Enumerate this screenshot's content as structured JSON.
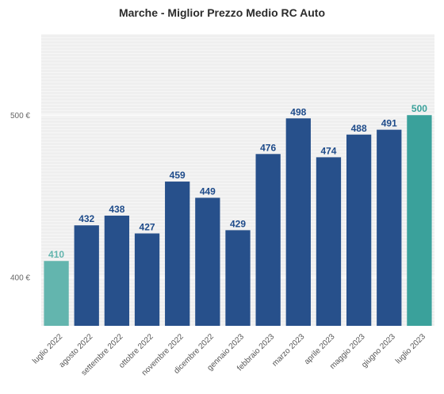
{
  "chart_data": {
    "type": "bar",
    "title": "Marche - Miglior Prezzo Medio RC Auto",
    "categories": [
      "luglio 2022",
      "agosto 2022",
      "settembre 2022",
      "ottobre 2022",
      "novembre 2022",
      "dicembre 2022",
      "gennaio 2023",
      "febbraio 2023",
      "marzo 2023",
      "aprile 2023",
      "maggio 2023",
      "giugno 2023",
      "luglio 2023"
    ],
    "values": [
      410,
      432,
      438,
      427,
      459,
      449,
      429,
      476,
      498,
      474,
      488,
      491,
      500
    ],
    "value_labels": [
      "410",
      "432",
      "438",
      "427",
      "459",
      "449",
      "429",
      "476",
      "498",
      "474",
      "488",
      "491",
      "500"
    ],
    "ylim": [
      370,
      550
    ],
    "yticks": [
      400,
      500
    ],
    "ytick_labels": [
      "400 €",
      "500 €"
    ],
    "grid": true,
    "colors": {
      "default_bar": "#27508b",
      "first_bar": "#63b5ae",
      "last_bar": "#3aa19b",
      "default_label": "#1e4b8a",
      "first_label": "#63b5ae",
      "last_label": "#3aa19b",
      "plot_bg": "#efefef",
      "grid": "#ffffff"
    }
  }
}
